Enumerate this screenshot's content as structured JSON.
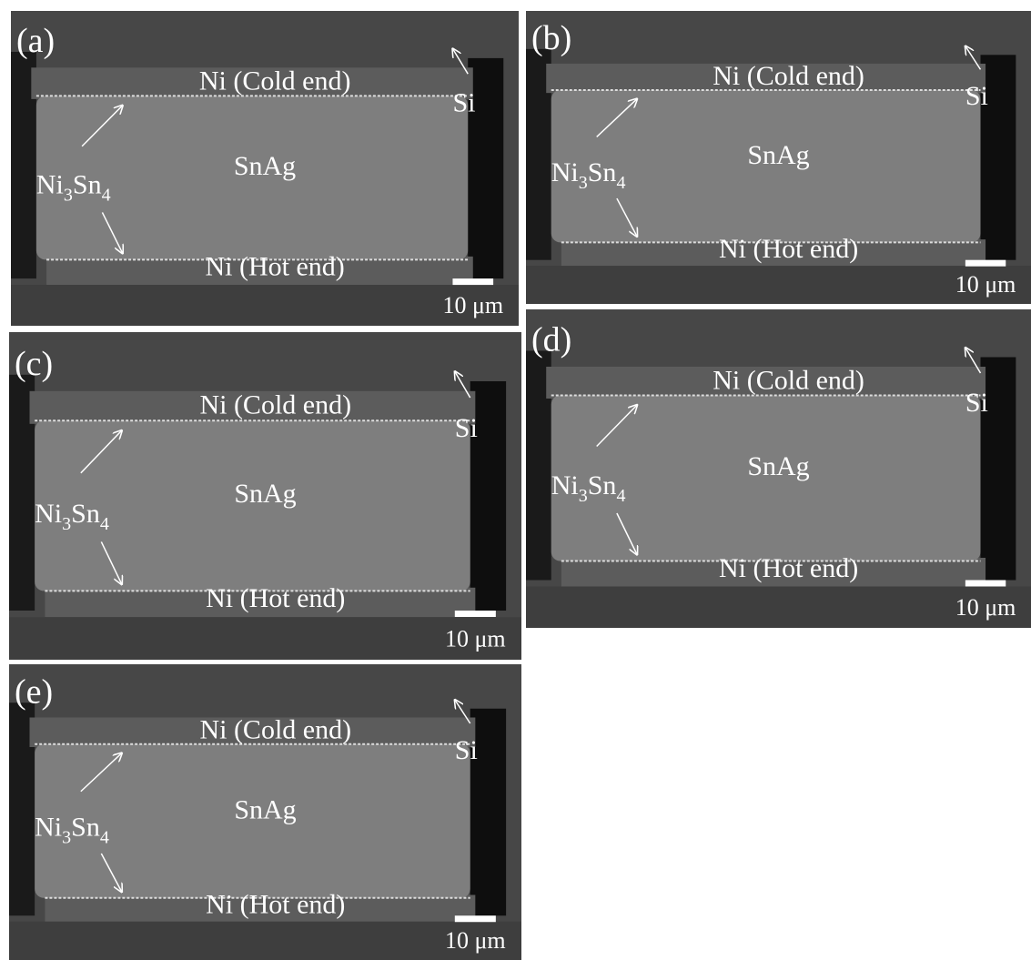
{
  "panels": [
    {
      "label": "(a)",
      "cold": "Ni (Cold end)",
      "hot": "Ni (Hot end)",
      "solder": "SnAg",
      "si": "Si",
      "imc": [
        "Ni",
        "3",
        "Sn",
        "4"
      ],
      "scale": "10 μm"
    },
    {
      "label": "(b)",
      "cold": "Ni (Cold end)",
      "hot": "Ni (Hot end)",
      "solder": "SnAg",
      "si": "Si",
      "imc": [
        "Ni",
        "3",
        "Sn",
        "4"
      ],
      "scale": "10 μm"
    },
    {
      "label": "(c)",
      "cold": "Ni (Cold end)",
      "hot": "Ni (Hot end)",
      "solder": "SnAg",
      "si": "Si",
      "imc": [
        "Ni",
        "3",
        "Sn",
        "4"
      ],
      "scale": "10 μm"
    },
    {
      "label": "(d)",
      "cold": "Ni (Cold end)",
      "hot": "Ni (Hot end)",
      "solder": "SnAg",
      "si": "Si",
      "imc": [
        "Ni",
        "3",
        "Sn",
        "4"
      ],
      "scale": "10 μm"
    },
    {
      "label": "(e)",
      "cold": "Ni (Cold end)",
      "hot": "Ni (Hot end)",
      "solder": "SnAg",
      "si": "Si",
      "imc": [
        "Ni",
        "3",
        "Sn",
        "4"
      ],
      "scale": "10 μm"
    }
  ]
}
